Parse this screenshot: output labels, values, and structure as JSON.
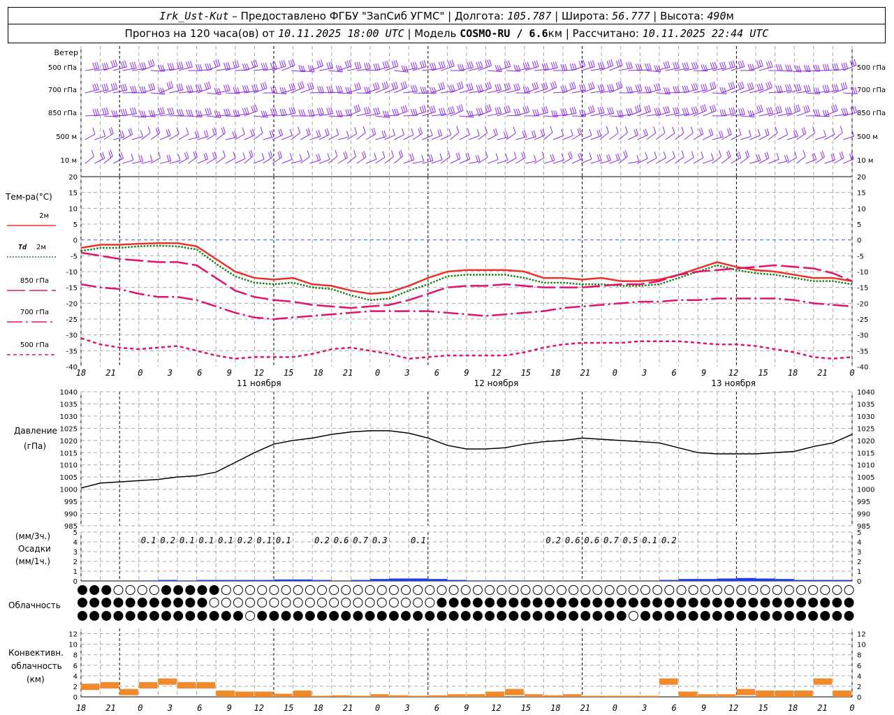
{
  "header": {
    "station": "Irk_Ust-Kut",
    "provided": " – Предоставлено ФГБУ \"ЗапСиб УГМС\" | Долгота: ",
    "lon": "105.787",
    "lat_label": " | Широта: ",
    "lat": "56.777",
    "alt_label": " | Высота: ",
    "alt": "490",
    "alt_unit": "м",
    "forecast_prefix": "Прогноз на 120 часа(ов) от ",
    "start_time": "10.11.2025 18:00 UTC",
    "model_label": " | Модель ",
    "model": "COSMO-RU / 6.6",
    "model_unit": "км",
    "calc_label": " | Рассчитано: ",
    "calc_time": "10.11.2025 22:44 UTC"
  },
  "wind": {
    "title": "Ветер",
    "levels": [
      "500 гПа",
      "700 гПа",
      "850 гПа",
      "500 м",
      "10 м"
    ],
    "level_labels_right": [
      "500 гПа",
      "700 гПа",
      "850 гПа",
      "500 м",
      "10 м"
    ],
    "color": "#8a2be2",
    "note": "Ветер"
  },
  "time_axis": {
    "hour_labels": [
      "18",
      "21",
      "0",
      "3",
      "6",
      "9",
      "12",
      "15",
      "18",
      "21",
      "0",
      "3",
      "6",
      "9",
      "12",
      "15",
      "18",
      "21",
      "0",
      "3",
      "6",
      "9",
      "12",
      "15",
      "18",
      "21",
      "0"
    ],
    "day_labels": [
      "11 ноября",
      "12 ноября",
      "13 ноября"
    ]
  },
  "temperature": {
    "title": "Тем-ра(°С)",
    "legend": [
      {
        "label": "2м",
        "color": "#e8322a"
      },
      {
        "label": "2м",
        "prefix": "Td",
        "color": "#1e7d1e"
      },
      {
        "label": "850 гПа",
        "color": "#e0126e"
      },
      {
        "label": "700 гПа",
        "color": "#e0126e"
      },
      {
        "label": "500 гПа",
        "color": "#e0126e"
      }
    ],
    "ticks": [
      "20",
      "15",
      "10",
      "5",
      "0",
      "-5",
      "-10",
      "-15",
      "-20",
      "-25",
      "-30",
      "-35",
      "-40"
    ]
  },
  "pressure": {
    "title": "Давление",
    "unit": "(гПа)",
    "ticks": [
      "1040",
      "1035",
      "1030",
      "1025",
      "1020",
      "1015",
      "1010",
      "1005",
      "1000",
      "995",
      "990",
      "985"
    ]
  },
  "precip": {
    "unit_3h": "(мм/3ч.)",
    "title": "Осадки",
    "unit_1h": "(мм/1ч.)",
    "ticks": [
      "5",
      "4",
      "3",
      "2",
      "1",
      "0"
    ],
    "labels": [
      {
        "hour": 10.5,
        "text": "0.1"
      },
      {
        "hour": 13.5,
        "text": "0.2"
      },
      {
        "hour": 16.5,
        "text": "0.1"
      },
      {
        "hour": 19.5,
        "text": "0.1"
      },
      {
        "hour": 22.5,
        "text": "0.1"
      },
      {
        "hour": 25.5,
        "text": "0.2"
      },
      {
        "hour": 28.5,
        "text": "0.1"
      },
      {
        "hour": 31.5,
        "text": "0.1"
      },
      {
        "hour": 37.5,
        "text": "0.2"
      },
      {
        "hour": 40.5,
        "text": "0.6"
      },
      {
        "hour": 43.5,
        "text": "0.7"
      },
      {
        "hour": 46.5,
        "text": "0.3"
      },
      {
        "hour": 52.5,
        "text": "0.1"
      },
      {
        "hour": 73.5,
        "text": "0.2"
      },
      {
        "hour": 76.5,
        "text": "0.6"
      },
      {
        "hour": 79.5,
        "text": "0.6"
      },
      {
        "hour": 82.5,
        "text": "0.7"
      },
      {
        "hour": 85.5,
        "text": "0.5"
      },
      {
        "hour": 88.5,
        "text": "0.1"
      },
      {
        "hour": 91.5,
        "text": "0.2"
      }
    ]
  },
  "clouds": {
    "title": "Облачность"
  },
  "convective": {
    "title_1": "Конвективн.",
    "title_2": "облачность",
    "unit": "(км)",
    "ticks": [
      "12",
      "10",
      "8",
      "6",
      "4",
      "2",
      "0"
    ]
  },
  "chart_data": [
    {
      "type": "line",
      "name": "temperature",
      "x_hours_from_start": [
        0,
        3,
        6,
        9,
        12,
        15,
        18,
        21,
        24,
        27,
        30,
        33,
        36,
        39,
        42,
        45,
        48,
        51,
        54,
        57,
        60,
        63,
        66,
        69,
        72,
        75,
        78,
        81,
        84,
        87,
        90,
        93,
        96,
        99,
        102,
        105,
        108,
        111,
        114,
        117,
        120
      ],
      "ylim": [
        -40,
        20
      ],
      "series": [
        {
          "name": "2м",
          "color": "#e8322a",
          "values": [
            -2.5,
            -1.5,
            -1.5,
            -1.2,
            -1,
            -1,
            -2,
            -6,
            -10,
            -12,
            -12.5,
            -12,
            -14,
            -14.5,
            -16,
            -17,
            -16.5,
            -14.5,
            -12,
            -10,
            -9.5,
            -9.5,
            -9.5,
            -10,
            -12,
            -12,
            -12.5,
            -12,
            -13,
            -13,
            -12.5,
            -11,
            -9,
            -7,
            -8.5,
            -9.5,
            -10,
            -11,
            -12,
            -12,
            -13
          ]
        },
        {
          "name": "2м",
          "prefix": "Td",
          "color": "#1e7d1e",
          "values": [
            -3.5,
            -2.5,
            -2.5,
            -2,
            -1.8,
            -2,
            -3,
            -7.5,
            -11.5,
            -13.5,
            -14,
            -13.5,
            -15,
            -15.5,
            -17.5,
            -19,
            -18.5,
            -16,
            -14,
            -11.5,
            -11,
            -11,
            -11,
            -12,
            -13.5,
            -13.5,
            -14,
            -14,
            -14.5,
            -14.5,
            -14,
            -12,
            -10,
            -8,
            -9.5,
            -10.5,
            -11,
            -12,
            -13,
            -13,
            -14
          ]
        },
        {
          "name": "850 гПа",
          "color": "#e0126e",
          "dash": "26,6",
          "values": [
            -4,
            -5,
            -6,
            -6.5,
            -7,
            -7,
            -8,
            -12,
            -16,
            -18,
            -19,
            -19.5,
            -20.5,
            -21,
            -21.5,
            -21,
            -20.5,
            -19,
            -17,
            -15,
            -14.5,
            -14.5,
            -14,
            -14.5,
            -15,
            -15,
            -15,
            -14.5,
            -14,
            -14,
            -13,
            -11,
            -10,
            -9.5,
            -9,
            -8.5,
            -8,
            -8.5,
            -9,
            -10.5,
            -13
          ]
        },
        {
          "name": "700 гПа",
          "color": "#e0126e",
          "dash": "22,5,3,5",
          "values": [
            -14,
            -15,
            -15.5,
            -17,
            -18,
            -18,
            -19,
            -21,
            -23,
            -24.5,
            -25,
            -24.5,
            -24,
            -23.5,
            -23,
            -22.5,
            -22.5,
            -22.5,
            -22.5,
            -23,
            -23.5,
            -24,
            -23.5,
            -23,
            -22.5,
            -21.5,
            -21,
            -20.5,
            -20,
            -19.5,
            -19.5,
            -19,
            -19,
            -18.5,
            -18.5,
            -18.5,
            -18.5,
            -19,
            -20,
            -20.5,
            -21
          ]
        },
        {
          "name": "500 гПа",
          "color": "#e0126e",
          "dash": "5,4",
          "values": [
            -31,
            -33,
            -34,
            -34.5,
            -34,
            -33.5,
            -35,
            -36.5,
            -37.5,
            -37,
            -37,
            -37,
            -36,
            -34.5,
            -34,
            -35,
            -36,
            -37.5,
            -37,
            -36.5,
            -36.5,
            -36.5,
            -36.5,
            -35.5,
            -34,
            -33,
            -32.5,
            -32.5,
            -32.5,
            -32,
            -32,
            -32,
            -32.5,
            -33,
            -33,
            -33.5,
            -34.5,
            -35.5,
            -37,
            -37.5,
            -37
          ]
        }
      ]
    },
    {
      "type": "line",
      "name": "pressure",
      "x_hours_from_start": [
        0,
        3,
        6,
        9,
        12,
        15,
        18,
        21,
        24,
        27,
        30,
        33,
        36,
        39,
        42,
        45,
        48,
        51,
        54,
        57,
        60,
        63,
        66,
        69,
        72,
        75,
        78,
        81,
        84,
        87,
        90,
        93,
        96,
        99,
        102,
        105,
        108,
        111,
        114,
        117,
        120
      ],
      "ylim": [
        985,
        1040
      ],
      "series": [
        {
          "name": "Давление",
          "color": "#000000",
          "values": [
            1000.5,
            1002.5,
            1003,
            1003.5,
            1004,
            1005,
            1005.5,
            1007,
            1011,
            1015,
            1018.5,
            1020,
            1021,
            1022.5,
            1023.5,
            1024,
            1024,
            1023,
            1021,
            1018,
            1016.5,
            1016.5,
            1017,
            1018.5,
            1019.5,
            1020,
            1021,
            1020.5,
            1020,
            1019.5,
            1019,
            1017,
            1015,
            1014.5,
            1014.5,
            1014.5,
            1015,
            1015.5,
            1017.5,
            1019,
            1022.5
          ]
        }
      ]
    },
    {
      "type": "bar",
      "name": "precipitation",
      "x_hours_from_start": [
        0,
        3,
        6,
        9,
        12,
        15,
        18,
        21,
        24,
        27,
        30,
        33,
        36,
        39,
        42,
        45,
        48,
        51,
        54,
        57,
        60,
        63,
        66,
        69,
        72,
        75,
        78,
        81,
        84,
        87,
        90,
        93,
        96,
        99,
        102,
        105,
        108,
        111,
        114,
        117
      ],
      "ylim": [
        0,
        5
      ],
      "series": [
        {
          "name": "Осадки",
          "color": "#1f3fe6",
          "values": [
            0,
            0,
            0,
            0.05,
            0.1,
            0.05,
            0.1,
            0.1,
            0.1,
            0.1,
            0.15,
            0.15,
            0.1,
            0,
            0.1,
            0.2,
            0.25,
            0.25,
            0.2,
            0.1,
            0.05,
            0.05,
            0.05,
            0,
            0,
            0,
            0,
            0,
            0,
            0,
            0.1,
            0.2,
            0.2,
            0.25,
            0.3,
            0.25,
            0.2,
            0.1,
            0.1,
            0.1
          ]
        }
      ]
    },
    {
      "type": "bar",
      "name": "convective_cloud",
      "x_hours_from_start": [
        0,
        3,
        6,
        9,
        12,
        15,
        18,
        21,
        24,
        27,
        30,
        33,
        36,
        39,
        42,
        45,
        48,
        51,
        54,
        57,
        60,
        63,
        66,
        69,
        72,
        75,
        78,
        81,
        84,
        87,
        90,
        93,
        96,
        99,
        102,
        105,
        108,
        111,
        114,
        117
      ],
      "ylim": [
        0,
        13
      ],
      "series": [
        {
          "name": "Конвективн. облачность",
          "color": "#f08a2a",
          "values": [
            2.5,
            2.8,
            1.5,
            2.8,
            3.5,
            2.8,
            2.8,
            1.2,
            1,
            1,
            0.6,
            1.2,
            0.2,
            0.3,
            0.2,
            0.5,
            0.3,
            0.2,
            0.3,
            0.5,
            0.5,
            1,
            1.5,
            0.5,
            0.3,
            0.5,
            0.2,
            0.2,
            0.2,
            0.2,
            3.5,
            1,
            0.5,
            0.5,
            1.5,
            1.2,
            1.2,
            1.2,
            3.5,
            1.2
          ]
        }
      ]
    }
  ]
}
